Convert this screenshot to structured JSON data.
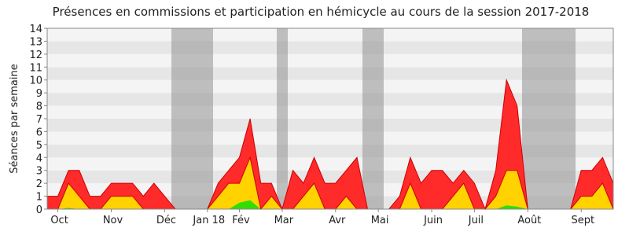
{
  "chart_data": {
    "type": "stacked_area",
    "title": "Présences en commissions et participation en hémicycle au cours de la session 2017-2018",
    "y_label": "Séances par semaine",
    "categories": [
      null,
      "Oct",
      null,
      null,
      null,
      null,
      "Nov",
      null,
      null,
      null,
      null,
      "Déc",
      null,
      null,
      null,
      "Jan 18",
      null,
      null,
      "Fév",
      null,
      null,
      null,
      "Mar",
      null,
      null,
      null,
      null,
      "Avr",
      null,
      null,
      null,
      "Mai",
      null,
      null,
      null,
      null,
      "Juin",
      null,
      null,
      null,
      "Juil",
      null,
      null,
      null,
      null,
      "Août",
      null,
      null,
      null,
      null,
      "Sept",
      null,
      null,
      null
    ],
    "series": [
      {
        "name": "green",
        "color": "#33dd00",
        "values": [
          0,
          0,
          0.1,
          0,
          0,
          0,
          0,
          0,
          0,
          0,
          0,
          0,
          0,
          0,
          0,
          0,
          0,
          0,
          0.5,
          0.7,
          0,
          0,
          0,
          0,
          0,
          0,
          0,
          0,
          0,
          0,
          0,
          0,
          0,
          0,
          0,
          0,
          0,
          0,
          0,
          0,
          0,
          0,
          0,
          0.3,
          0.2,
          0,
          0,
          0,
          0,
          0,
          0,
          0,
          0,
          0
        ]
      },
      {
        "name": "yellow",
        "color": "#ffd200",
        "values": [
          0,
          0,
          1.9,
          1,
          0,
          0,
          1,
          1,
          1,
          0,
          0,
          0,
          0,
          0,
          0,
          0,
          1,
          2,
          1.5,
          3.3,
          0,
          1,
          0,
          0,
          1,
          2,
          0,
          0,
          1,
          0,
          0,
          0,
          0,
          0,
          2,
          0,
          0,
          0,
          1,
          2,
          0,
          0,
          1,
          2.7,
          2.8,
          0,
          0,
          0,
          0,
          0,
          1,
          1,
          2,
          0
        ]
      },
      {
        "name": "red",
        "color": "#ff2a2a",
        "values": [
          1,
          1,
          1,
          2,
          1,
          1,
          1,
          1,
          1,
          1,
          2,
          1,
          0,
          0,
          0,
          0,
          1,
          1,
          2,
          3,
          2,
          1,
          0,
          3,
          1,
          2,
          2,
          2,
          2,
          4,
          0,
          0,
          0,
          1,
          2,
          2,
          3,
          3,
          1,
          1,
          2,
          0,
          2,
          7,
          5,
          0,
          0,
          0,
          0,
          0,
          2,
          2,
          2,
          2
        ]
      }
    ],
    "ylim": [
      0,
      14
    ],
    "yticks": [
      0,
      1,
      2,
      3,
      4,
      5,
      6,
      7,
      8,
      9,
      10,
      11,
      12,
      13,
      14
    ],
    "grid": true
  }
}
